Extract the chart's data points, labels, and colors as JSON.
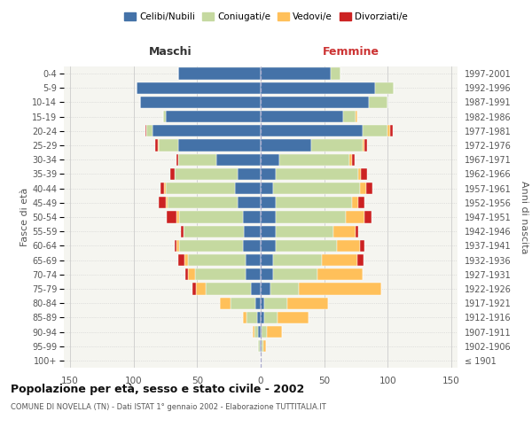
{
  "age_groups": [
    "100+",
    "95-99",
    "90-94",
    "85-89",
    "80-84",
    "75-79",
    "70-74",
    "65-69",
    "60-64",
    "55-59",
    "50-54",
    "45-49",
    "40-44",
    "35-39",
    "30-34",
    "25-29",
    "20-24",
    "15-19",
    "10-14",
    "5-9",
    "0-4"
  ],
  "birth_years": [
    "≤ 1901",
    "1902-1906",
    "1907-1911",
    "1912-1916",
    "1917-1921",
    "1922-1926",
    "1927-1931",
    "1932-1936",
    "1937-1941",
    "1942-1946",
    "1947-1951",
    "1952-1956",
    "1957-1961",
    "1962-1966",
    "1967-1971",
    "1972-1976",
    "1977-1981",
    "1982-1986",
    "1987-1991",
    "1992-1996",
    "1997-2001"
  ],
  "m_cel": [
    0,
    1,
    2,
    3,
    4,
    8,
    12,
    12,
    14,
    13,
    14,
    18,
    20,
    18,
    35,
    65,
    85,
    75,
    95,
    98,
    65
  ],
  "m_con": [
    0,
    1,
    3,
    8,
    20,
    35,
    40,
    45,
    50,
    48,
    50,
    55,
    55,
    50,
    30,
    15,
    5,
    2,
    0,
    0,
    0
  ],
  "m_ved": [
    0,
    0,
    1,
    3,
    8,
    8,
    5,
    3,
    2,
    0,
    2,
    2,
    1,
    0,
    0,
    1,
    0,
    0,
    0,
    0,
    0
  ],
  "m_div": [
    0,
    0,
    0,
    0,
    0,
    3,
    2,
    5,
    2,
    2,
    8,
    5,
    3,
    3,
    1,
    2,
    1,
    0,
    0,
    0,
    0
  ],
  "f_nub": [
    0,
    1,
    1,
    3,
    3,
    8,
    10,
    10,
    12,
    12,
    12,
    12,
    10,
    12,
    15,
    40,
    80,
    65,
    85,
    90,
    55
  ],
  "f_con": [
    0,
    1,
    4,
    10,
    18,
    22,
    35,
    38,
    48,
    45,
    55,
    60,
    68,
    65,
    55,
    40,
    20,
    10,
    15,
    15,
    8
  ],
  "f_ved": [
    0,
    2,
    12,
    25,
    32,
    65,
    35,
    28,
    18,
    18,
    15,
    5,
    5,
    2,
    2,
    2,
    2,
    1,
    0,
    0,
    0
  ],
  "f_div": [
    0,
    0,
    0,
    0,
    0,
    0,
    0,
    5,
    4,
    2,
    5,
    5,
    5,
    5,
    2,
    2,
    2,
    0,
    0,
    0,
    0
  ],
  "c_cel": "#4472a8",
  "c_con": "#c5d9a0",
  "c_ved": "#ffc05a",
  "c_div": "#cc2222",
  "xlim": 155,
  "title": "Popolazione per età, sesso e stato civile - 2002",
  "subtitle": "COMUNE DI NOVELLA (TN) - Dati ISTAT 1° gennaio 2002 - Elaborazione TUTTITALIA.IT",
  "label_maschi": "Maschi",
  "label_femmine": "Femmine",
  "ylabel_left": "Fasce di età",
  "ylabel_right": "Anni di nascita",
  "legend_labels": [
    "Celibi/Nubili",
    "Coniugati/e",
    "Vedovi/e",
    "Divorziati/e"
  ],
  "xticks": [
    -150,
    -100,
    -50,
    0,
    50,
    100,
    150
  ],
  "xticklabels": [
    "150",
    "100",
    "50",
    "0",
    "50",
    "100",
    "150"
  ],
  "bg_color": "#f5f5f0",
  "grid_color": "#cccccc"
}
